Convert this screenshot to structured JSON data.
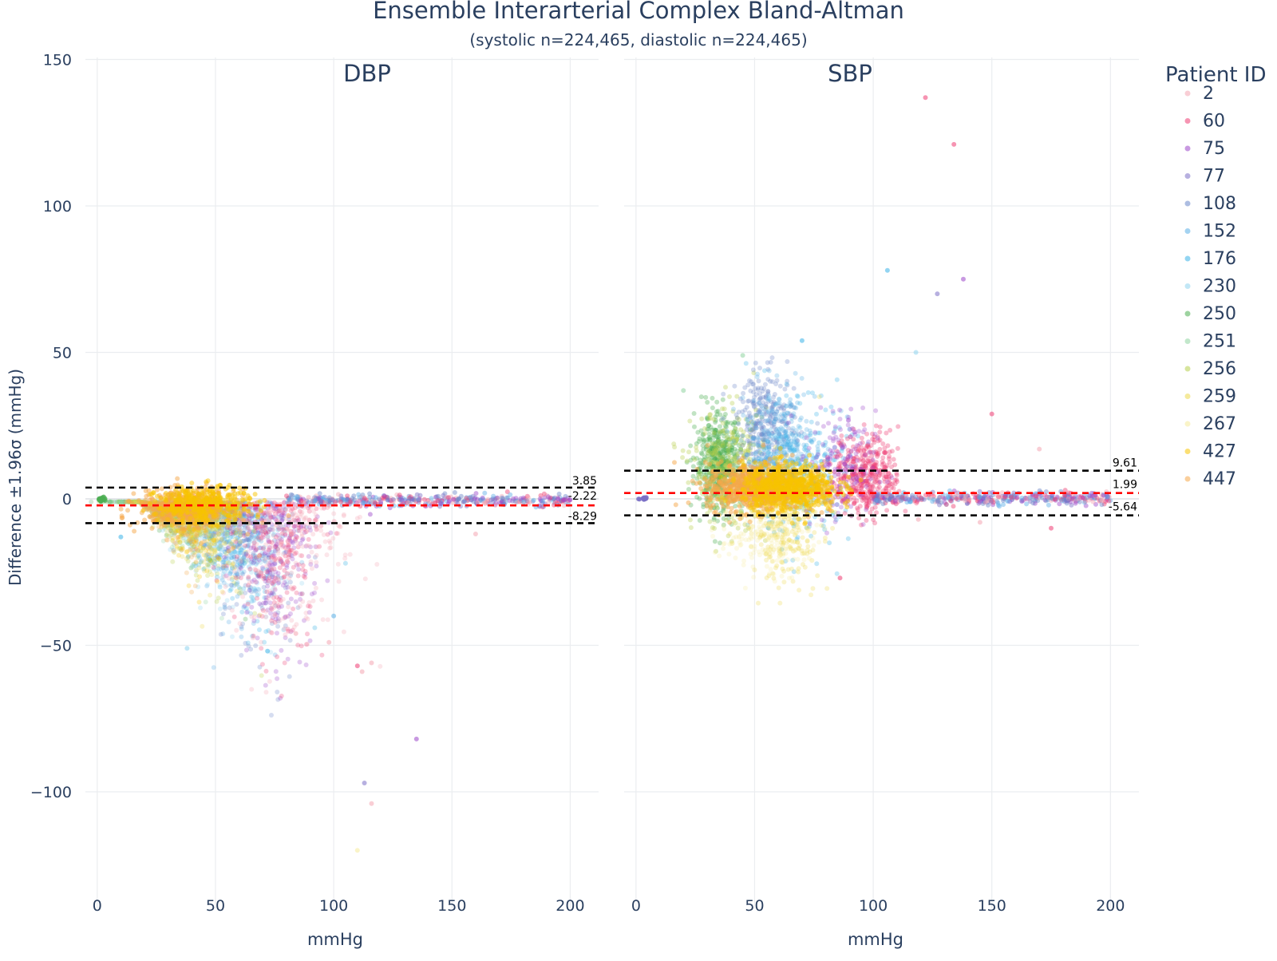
{
  "chart_data": {
    "type": "scatter",
    "title": "Ensemble Interarterial Complex Bland-Altman",
    "subtitle": "(systolic n=224,465, diastolic n=224,465)",
    "ylabel": "Difference ±1.96σ (mmHg)",
    "ylim": [
      -135,
      152
    ],
    "yticks": [
      150,
      100,
      50,
      0,
      -50,
      -100
    ],
    "ytick_labels": [
      "150",
      "100",
      "50",
      "0",
      "−50",
      "−100"
    ],
    "grid": true,
    "legend": {
      "title": "Patient ID",
      "placement": "right",
      "entries": [
        {
          "name": "2",
          "color": "#f4a6b3"
        },
        {
          "name": "60",
          "color": "#ee3d72"
        },
        {
          "name": "75",
          "color": "#9b46c9"
        },
        {
          "name": "77",
          "color": "#7b6fc6"
        },
        {
          "name": "108",
          "color": "#6a86c8"
        },
        {
          "name": "152",
          "color": "#5aaee6"
        },
        {
          "name": "176",
          "color": "#3bb3e8"
        },
        {
          "name": "230",
          "color": "#8fd3ef"
        },
        {
          "name": "250",
          "color": "#4cae52"
        },
        {
          "name": "251",
          "color": "#8fd4a0"
        },
        {
          "name": "256",
          "color": "#b6cf4d"
        },
        {
          "name": "259",
          "color": "#ecd94a"
        },
        {
          "name": "267",
          "color": "#f6eb9a"
        },
        {
          "name": "427",
          "color": "#f8c400"
        },
        {
          "name": "447",
          "color": "#f6a84a"
        }
      ]
    },
    "panels": [
      {
        "name": "DBP",
        "xlabel": "mmHg",
        "xlim": [
          -5,
          212
        ],
        "xticks": [
          0,
          50,
          100,
          150,
          200
        ],
        "lines": [
          {
            "label": "3.85",
            "value": 3.85,
            "color": "#000000"
          },
          {
            "label": "-2.22",
            "value": -2.22,
            "color": "#ff0000"
          },
          {
            "label": "-8.29",
            "value": -8.29,
            "color": "#000000"
          }
        ]
      },
      {
        "name": "SBP",
        "xlabel": "mmHg",
        "xlim": [
          -5,
          212
        ],
        "xticks": [
          0,
          50,
          100,
          150,
          200
        ],
        "lines": [
          {
            "label": "9.61",
            "value": 9.61,
            "color": "#000000"
          },
          {
            "label": "1.99",
            "value": 1.99,
            "color": "#ff0000"
          },
          {
            "label": "-5.64",
            "value": -5.64,
            "color": "#000000"
          }
        ]
      }
    ]
  }
}
